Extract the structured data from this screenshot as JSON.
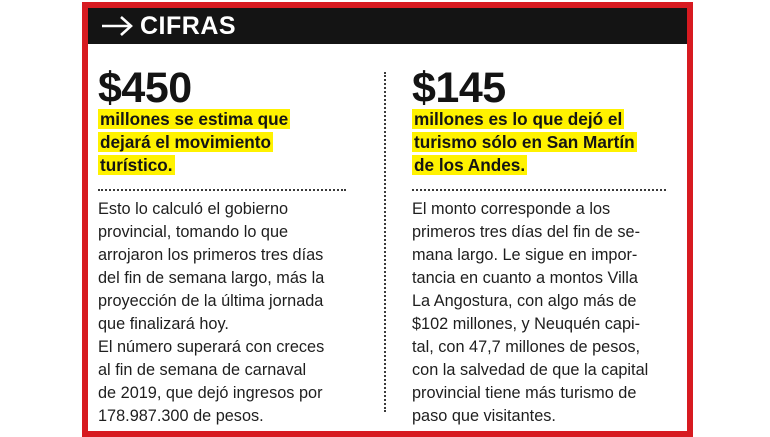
{
  "header": {
    "title": "CIFRAS",
    "icon": "arrow-right-icon",
    "bar_color": "#141414",
    "border_color": "#d71a20"
  },
  "left": {
    "amount": "$450",
    "highlight_lines": [
      "millones se estima que",
      "dejará el movimiento",
      "turístico."
    ],
    "body_lines": [
      "Esto lo calculó el gobierno",
      "provincial, tomando lo que",
      "arrojaron los primeros tres días",
      "del fin de semana largo, más la",
      "proyección de la última jornada",
      "que finalizará hoy.",
      "El número superará con creces",
      "al fin de semana de carnaval",
      "de 2019, que dejó ingresos por",
      "178.987.300 de pesos."
    ]
  },
  "right": {
    "amount": "$145",
    "highlight_lines": [
      "millones es lo que dejó el",
      "turismo sólo en San Martín",
      "de los Andes."
    ],
    "body_lines": [
      "El monto corresponde a los",
      "primeros tres días del fin de se-",
      "mana largo. Le sigue en impor-",
      "tancia en cuanto a montos Villa",
      "La Angostura, con algo más de",
      "$102 millones, y Neuquén capi-",
      "tal, con 47,7 millones de pesos,",
      "con la salvedad de que la capital",
      "provincial tiene más turismo de",
      "paso que visitantes."
    ]
  },
  "highlight_color": "#fff200"
}
